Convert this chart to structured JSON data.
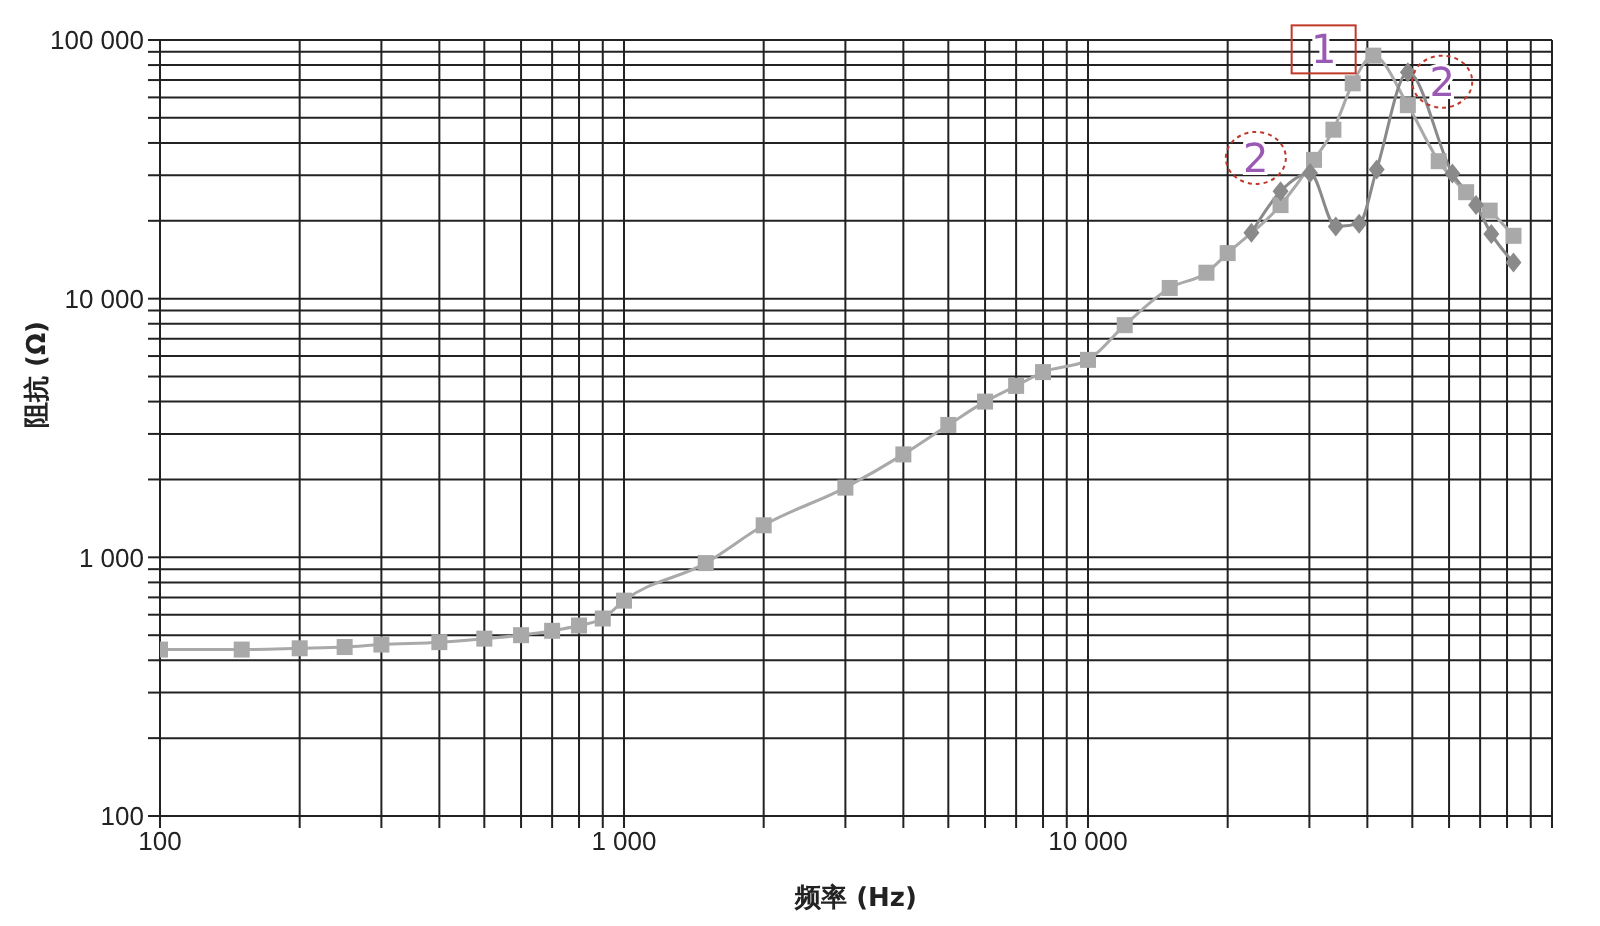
{
  "chart_data": {
    "type": "line",
    "xlabel": "频率 (Hz)",
    "ylabel": "阻抗 (Ω)",
    "log": "xy",
    "grid": true,
    "legend": false,
    "xlim": [
      100,
      100000
    ],
    "xticks": [
      100,
      {
        "value": 200,
        "label": null
      },
      {
        "value": 300,
        "label": null
      },
      {
        "value": 400,
        "label": null
      },
      {
        "value": 500,
        "label": null
      },
      {
        "value": 600,
        "label": null
      },
      {
        "value": 700,
        "label": null
      },
      {
        "value": 800,
        "label": null
      },
      {
        "value": 900,
        "label": null
      },
      {
        "value": 1000,
        "label": "1 000"
      },
      {
        "value": 2000,
        "label": null
      },
      {
        "value": 3000,
        "label": null
      },
      {
        "value": 4000,
        "label": null
      },
      {
        "value": 5000,
        "label": null
      },
      {
        "value": 6000,
        "label": null
      },
      {
        "value": 7000,
        "label": null
      },
      {
        "value": 8000,
        "label": null
      },
      {
        "value": 9000,
        "label": null
      },
      {
        "value": 10000,
        "label": "10 000"
      },
      {
        "value": 20000,
        "label": null
      },
      {
        "value": 30000,
        "label": null
      },
      {
        "value": 40000,
        "label": null
      },
      {
        "value": 50000,
        "label": null
      },
      {
        "value": 60000,
        "label": null
      },
      {
        "value": 70000,
        "label": null
      },
      {
        "value": 80000,
        "label": null
      },
      {
        "value": 90000,
        "label": null
      },
      {
        "value": 100000,
        "label": null
      }
    ],
    "ylim": [
      100,
      100000
    ],
    "yticks": [
      100,
      {
        "value": 200,
        "label": null
      },
      {
        "value": 300,
        "label": null
      },
      {
        "value": 400,
        "label": null
      },
      {
        "value": 500,
        "label": null
      },
      {
        "value": 600,
        "label": null
      },
      {
        "value": 700,
        "label": null
      },
      {
        "value": 800,
        "label": null
      },
      {
        "value": 900,
        "label": null
      },
      {
        "value": 1000,
        "label": "1 000"
      },
      {
        "value": 2000,
        "label": null
      },
      {
        "value": 3000,
        "label": null
      },
      {
        "value": 4000,
        "label": null
      },
      {
        "value": 5000,
        "label": null
      },
      {
        "value": 6000,
        "label": null
      },
      {
        "value": 7000,
        "label": null
      },
      {
        "value": 8000,
        "label": null
      },
      {
        "value": 9000,
        "label": null
      },
      {
        "value": 10000,
        "label": "10 000"
      },
      {
        "value": 20000,
        "label": null
      },
      {
        "value": 30000,
        "label": null
      },
      {
        "value": 40000,
        "label": null
      },
      {
        "value": 50000,
        "label": null
      },
      {
        "value": 60000,
        "label": null
      },
      {
        "value": 70000,
        "label": null
      },
      {
        "value": 80000,
        "label": null
      },
      {
        "value": 90000,
        "label": null
      },
      {
        "value": 100000,
        "label": "100 000"
      }
    ],
    "series": [
      {
        "color": "#a9a9a9",
        "marker": "square",
        "x": [
          100,
          150,
          200,
          250,
          300,
          400,
          500,
          600,
          700,
          800,
          900,
          1000,
          1500,
          2000,
          3000,
          4000,
          5000,
          6000,
          7000,
          8000,
          10000,
          12000,
          15000,
          18000,
          20000,
          26000,
          30700,
          33800,
          37200,
          41200,
          48900,
          57000,
          65300,
          73400,
          82600
        ],
        "values": [
          440,
          440,
          445,
          450,
          460,
          470,
          485,
          500,
          520,
          545,
          580,
          680,
          950,
          1330,
          1860,
          2500,
          3250,
          4000,
          4600,
          5200,
          5800,
          7900,
          11000,
          12600,
          15000,
          23000,
          34400,
          45000,
          68000,
          87000,
          56000,
          34000,
          25800,
          21900,
          17500
        ]
      },
      {
        "color": "#8a8a8a",
        "marker": "diamond",
        "x": [
          22500,
          26000,
          30100,
          34200,
          38400,
          41900,
          48900,
          61000,
          68600,
          74000,
          82600
        ],
        "values": [
          18000,
          26000,
          30600,
          19000,
          19500,
          31600,
          75000,
          30500,
          23000,
          17800,
          13800
        ]
      }
    ],
    "annotations": [
      {
        "text": "1",
        "x": 32200,
        "y": 92000
      },
      {
        "text": "2",
        "x": 23000,
        "y": 35000
      },
      {
        "text": "2",
        "x": 58000,
        "y": 69000
      }
    ]
  }
}
